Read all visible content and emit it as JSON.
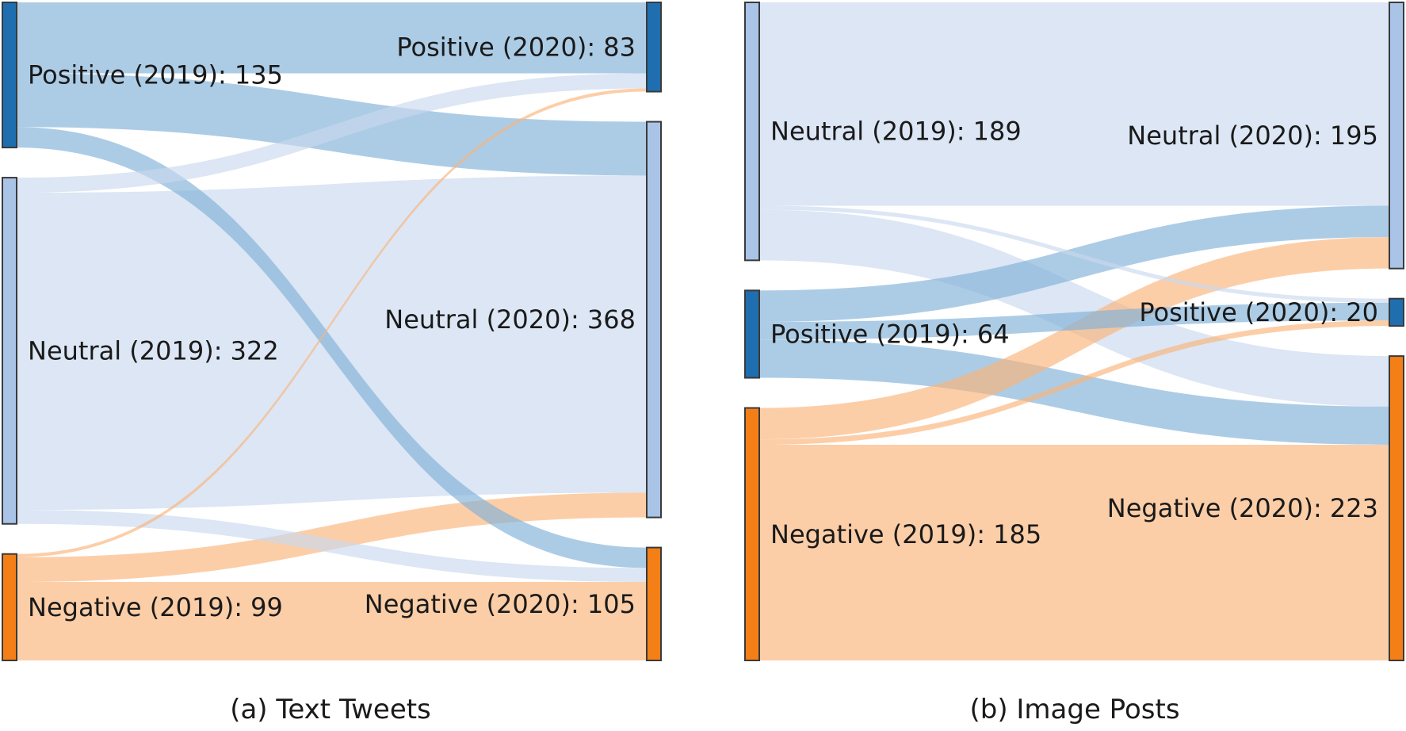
{
  "chart_data": [
    {
      "type": "sankey",
      "caption": "(a) Text Tweets",
      "nodes_left": [
        {
          "id": "pos19",
          "name": "Positive (2019)",
          "value": 135,
          "label": "Positive (2019): 135",
          "color": "#1f6fb0"
        },
        {
          "id": "neu19",
          "name": "Neutral (2019)",
          "value": 322,
          "label": "Neutral (2019): 322",
          "color": "#a9c4e6"
        },
        {
          "id": "neg19",
          "name": "Negative (2019)",
          "value": 99,
          "label": "Negative (2019): 99",
          "color": "#f57f17"
        }
      ],
      "nodes_right": [
        {
          "id": "pos20",
          "name": "Positive (2020)",
          "value": 83,
          "label": "Positive (2020): 83",
          "color": "#1f6fb0"
        },
        {
          "id": "neu20",
          "name": "Neutral (2020)",
          "value": 368,
          "label": "Neutral (2020): 368",
          "color": "#a9c4e6"
        },
        {
          "id": "neg20",
          "name": "Negative (2020)",
          "value": 105,
          "label": "Negative (2020): 105",
          "color": "#f57f17"
        }
      ],
      "links": [
        {
          "source": "pos19",
          "target": "pos20",
          "value": 66
        },
        {
          "source": "pos19",
          "target": "neu20",
          "value": 50
        },
        {
          "source": "pos19",
          "target": "neg20",
          "value": 19
        },
        {
          "source": "neu19",
          "target": "pos20",
          "value": 14
        },
        {
          "source": "neu19",
          "target": "neu20",
          "value": 295
        },
        {
          "source": "neu19",
          "target": "neg20",
          "value": 13
        },
        {
          "source": "neg19",
          "target": "pos20",
          "value": 3
        },
        {
          "source": "neg19",
          "target": "neu20",
          "value": 23
        },
        {
          "source": "neg19",
          "target": "neg20",
          "value": 73
        }
      ]
    },
    {
      "type": "sankey",
      "caption": "(b) Image Posts",
      "nodes_left": [
        {
          "id": "neu19",
          "name": "Neutral (2019)",
          "value": 189,
          "label": "Neutral (2019): 189",
          "color": "#a9c4e6"
        },
        {
          "id": "pos19",
          "name": "Positive (2019)",
          "value": 64,
          "label": "Positive (2019): 64",
          "color": "#1f6fb0"
        },
        {
          "id": "neg19",
          "name": "Negative (2019)",
          "value": 185,
          "label": "Negative (2019): 185",
          "color": "#f57f17"
        }
      ],
      "nodes_right": [
        {
          "id": "neu20",
          "name": "Neutral (2020)",
          "value": 195,
          "label": "Neutral (2020): 195",
          "color": "#a9c4e6"
        },
        {
          "id": "pos20",
          "name": "Positive (2020)",
          "value": 20,
          "label": "Positive (2020): 20",
          "color": "#1f6fb0"
        },
        {
          "id": "neg20",
          "name": "Negative (2020)",
          "value": 223,
          "label": "Negative (2020): 223",
          "color": "#f57f17"
        }
      ],
      "links": [
        {
          "source": "neu19",
          "target": "neu20",
          "value": 149
        },
        {
          "source": "neu19",
          "target": "pos20",
          "value": 3
        },
        {
          "source": "neu19",
          "target": "neg20",
          "value": 37
        },
        {
          "source": "pos19",
          "target": "neu20",
          "value": 23
        },
        {
          "source": "pos19",
          "target": "pos20",
          "value": 13
        },
        {
          "source": "pos19",
          "target": "neg20",
          "value": 28
        },
        {
          "source": "neg19",
          "target": "neu20",
          "value": 23
        },
        {
          "source": "neg19",
          "target": "pos20",
          "value": 4
        },
        {
          "source": "neg19",
          "target": "neg20",
          "value": 158
        }
      ]
    }
  ],
  "link_colors": {
    "pos19": "#7fb0d8",
    "neu19": "#c9d9ee",
    "neg19": "#fbb478"
  },
  "link_opacity": 0.65
}
